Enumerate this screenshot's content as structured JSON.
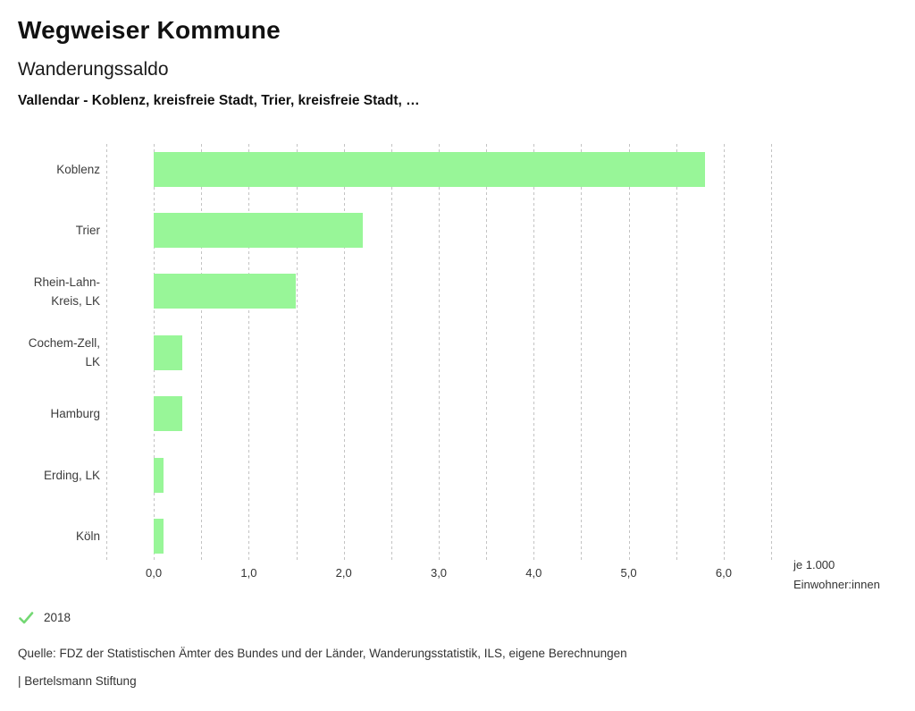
{
  "header": {
    "title": "Wegweiser Kommune",
    "subtitle": "Wanderungssaldo",
    "selection": "Vallendar - Koblenz, kreisfreie Stadt, Trier, kreisfreie Stadt, …"
  },
  "chart_data": {
    "type": "bar",
    "orientation": "horizontal",
    "title": "Wanderungssaldo",
    "categories": [
      "Koblenz",
      "Trier",
      "Rhein-Lahn-Kreis, LK",
      "Cochem-Zell, LK",
      "Hamburg",
      "Erding, LK",
      "Köln"
    ],
    "category_label_lines": [
      [
        "Koblenz"
      ],
      [
        "Trier"
      ],
      [
        "Rhein-Lahn-",
        "Kreis, LK"
      ],
      [
        "Cochem-Zell,",
        "LK"
      ],
      [
        "Hamburg"
      ],
      [
        "Erding, LK"
      ],
      [
        "Köln"
      ]
    ],
    "series": [
      {
        "name": "2018",
        "values": [
          5.8,
          2.2,
          1.5,
          0.3,
          0.3,
          0.1,
          0.1
        ]
      }
    ],
    "xlabel": "je 1.000 Einwohner:innen",
    "xlabel_lines": [
      "je 1.000",
      "Einwohner:innen"
    ],
    "ylabel": "",
    "xlim": [
      -0.5,
      6.5
    ],
    "x_ticks": [
      0,
      1,
      2,
      3,
      4,
      5,
      6
    ],
    "x_tick_labels": [
      "0,0",
      "1,0",
      "2,0",
      "3,0",
      "4,0",
      "5,0",
      "6,0"
    ],
    "grid_step": 0.5,
    "grid_on": true,
    "legend_position": "bottom-left",
    "bar_color": "#98f698",
    "grid_color": "#c3c3c3"
  },
  "legend": {
    "icon": "check-icon",
    "check_color": "#74d874",
    "label": "2018"
  },
  "footer": {
    "source": "Quelle: FDZ der Statistischen Ämter des Bundes und der Länder, Wanderungsstatistik, ILS, eigene Berechnungen",
    "attribution": "| Bertelsmann Stiftung"
  }
}
